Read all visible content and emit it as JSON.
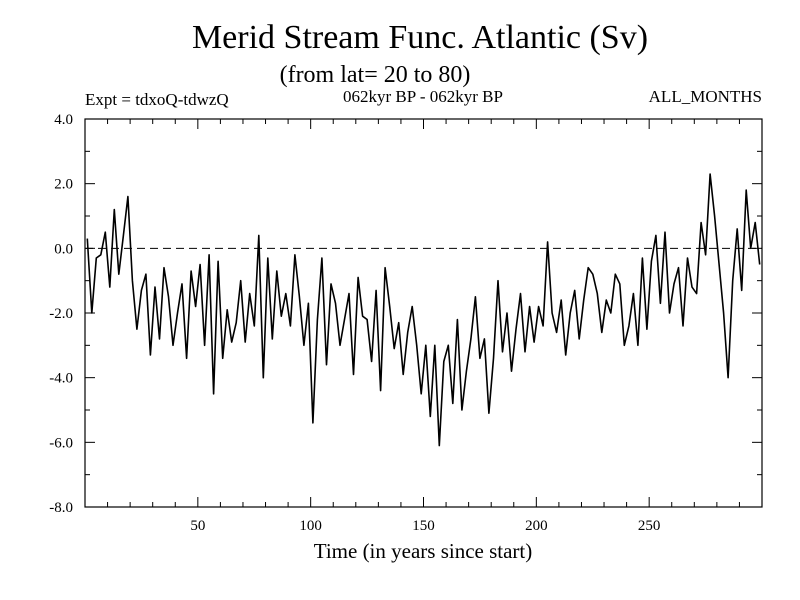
{
  "chart_data": {
    "type": "line",
    "title": "Merid Stream Func. Atlantic (Sv)",
    "subtitle": "(from lat= 20 to 80)",
    "header_left": "Expt = tdxoQ-tdwzQ",
    "header_center": "062kyr BP - 062kyr BP",
    "header_right": "ALL_MONTHS",
    "xlabel": "Time (in years since start)",
    "ylabel": "",
    "xlim": [
      0,
      300
    ],
    "ylim": [
      -8.0,
      4.0
    ],
    "xticks": [
      50,
      100,
      150,
      200,
      250
    ],
    "xtick_labels": [
      "50",
      "100",
      "150",
      "200",
      "250"
    ],
    "yticks": [
      4.0,
      2.0,
      0.0,
      -2.0,
      -4.0,
      -6.0,
      -8.0
    ],
    "ytick_labels": [
      "4.0",
      "2.0",
      "0.0",
      "-2.0",
      "-4.0",
      "-6.0",
      "-8.0"
    ],
    "reference_line": {
      "y": 0.0,
      "style": "dashed"
    },
    "grid": false,
    "color": "#000000",
    "series": [
      {
        "x": [
          1,
          3,
          5,
          7,
          9,
          11,
          13,
          15,
          17,
          19,
          21,
          23,
          25,
          27,
          29,
          31,
          33,
          35,
          37,
          39,
          41,
          43,
          45,
          47,
          49,
          51,
          53,
          55,
          57,
          59,
          61,
          63,
          65,
          67,
          69,
          71,
          73,
          75,
          77,
          79,
          81,
          83,
          85,
          87,
          89,
          91,
          93,
          95,
          97,
          99,
          101,
          103,
          105,
          107,
          109,
          111,
          113,
          115,
          117,
          119,
          121,
          123,
          125,
          127,
          129,
          131,
          133,
          135,
          137,
          139,
          141,
          143,
          145,
          147,
          149,
          151,
          153,
          155,
          157,
          159,
          161,
          163,
          165,
          167,
          169,
          171,
          173,
          175,
          177,
          179,
          181,
          183,
          185,
          187,
          189,
          191,
          193,
          195,
          197,
          199,
          201,
          203,
          205,
          207,
          209,
          211,
          213,
          215,
          217,
          219,
          221,
          223,
          225,
          227,
          229,
          231,
          233,
          235,
          237,
          239,
          241,
          243,
          245,
          247,
          249,
          251,
          253,
          255,
          257,
          259,
          261,
          263,
          265,
          267,
          269,
          271,
          273,
          275,
          277,
          279,
          281,
          283,
          285,
          287,
          289,
          291,
          293,
          295,
          297,
          299
        ],
        "values": [
          0.3,
          -2.0,
          -0.3,
          -0.2,
          0.5,
          -1.2,
          1.2,
          -0.8,
          0.4,
          1.6,
          -1.0,
          -2.5,
          -1.3,
          -0.8,
          -3.3,
          -1.2,
          -2.8,
          -0.6,
          -1.5,
          -3.0,
          -2.0,
          -1.1,
          -3.4,
          -0.7,
          -1.8,
          -0.5,
          -3.0,
          -0.2,
          -4.5,
          -0.4,
          -3.4,
          -1.9,
          -2.9,
          -2.3,
          -1.0,
          -2.9,
          -1.4,
          -2.4,
          0.4,
          -4.0,
          -0.3,
          -2.8,
          -0.7,
          -2.1,
          -1.4,
          -2.4,
          -0.2,
          -1.5,
          -3.0,
          -1.7,
          -5.4,
          -2.2,
          -0.3,
          -3.6,
          -1.1,
          -1.7,
          -3.0,
          -2.2,
          -1.4,
          -3.9,
          -0.9,
          -2.1,
          -2.2,
          -3.5,
          -1.3,
          -4.4,
          -0.6,
          -1.8,
          -3.1,
          -2.3,
          -3.9,
          -2.6,
          -1.8,
          -3.0,
          -4.5,
          -3.0,
          -5.2,
          -3.0,
          -6.1,
          -3.5,
          -3.0,
          -4.8,
          -2.2,
          -5.0,
          -3.8,
          -2.8,
          -1.5,
          -3.4,
          -2.8,
          -5.1,
          -3.4,
          -1.0,
          -3.2,
          -2.0,
          -3.8,
          -2.5,
          -1.4,
          -3.2,
          -1.8,
          -2.9,
          -1.8,
          -2.4,
          0.2,
          -2.0,
          -2.6,
          -1.6,
          -3.3,
          -2.0,
          -1.3,
          -2.8,
          -1.6,
          -0.6,
          -0.8,
          -1.4,
          -2.6,
          -1.6,
          -2.0,
          -0.8,
          -1.1,
          -3.0,
          -2.4,
          -1.4,
          -3.0,
          -0.3,
          -2.5,
          -0.4,
          0.4,
          -1.7,
          0.5,
          -2.0,
          -1.1,
          -0.6,
          -2.4,
          -0.3,
          -1.2,
          -1.4,
          0.8,
          -0.2,
          2.3,
          1.0,
          -0.5,
          -2.0,
          -4.0,
          -1.0,
          0.6,
          -1.3,
          1.8,
          0.0,
          0.8,
          -0.5
        ]
      }
    ]
  }
}
